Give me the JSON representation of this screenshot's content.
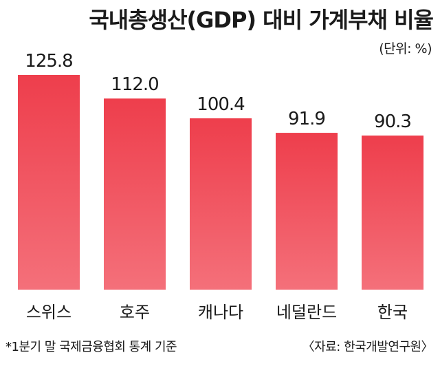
{
  "chart_data": {
    "type": "bar",
    "title": "국내총생산(GDP) 대비 가계부채 비율",
    "unit": "(단위: %)",
    "categories": [
      "스위스",
      "호주",
      "캐나다",
      "네덜란드",
      "한국"
    ],
    "values": [
      125.8,
      112.0,
      100.4,
      91.9,
      90.3
    ],
    "value_labels": [
      "125.8",
      "112.0",
      "100.4",
      "91.9",
      "90.3"
    ],
    "ylim": [
      0,
      125.8
    ],
    "grid": false,
    "colors": {
      "bar_top": "#ee3e4c",
      "bar_bottom": "#f4707a"
    },
    "footnote": "*1분기 말 국제금융협회 통계 기준",
    "source": "〈자료: 한국개발연구원〉"
  }
}
